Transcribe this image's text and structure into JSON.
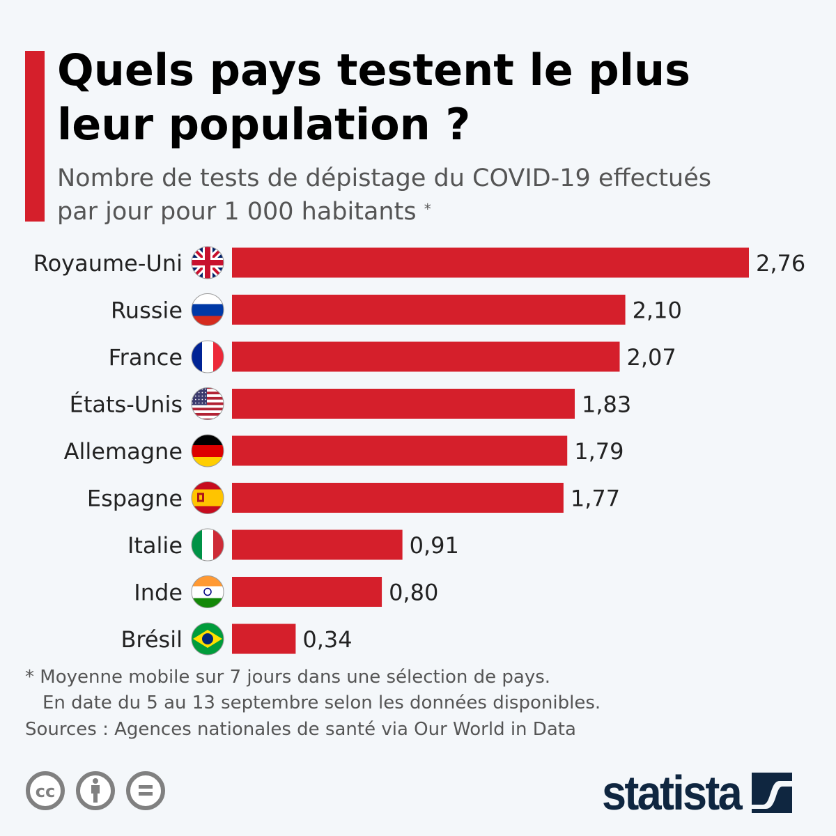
{
  "header": {
    "title_line1": "Quels pays testent le plus",
    "title_line2": "leur population ?",
    "subtitle_line1": "Nombre de tests de dépistage du COVID-19 effectués",
    "subtitle_line2": "par jour pour 1 000 habitants",
    "subtitle_marker": "*"
  },
  "chart_data": {
    "type": "bar",
    "orientation": "horizontal",
    "categories": [
      "Royaume-Uni",
      "Russie",
      "France",
      "États-Unis",
      "Allemagne",
      "Espagne",
      "Italie",
      "Inde",
      "Brésil"
    ],
    "values": [
      2.76,
      2.1,
      2.07,
      1.83,
      1.79,
      1.77,
      0.91,
      0.8,
      0.34
    ],
    "value_labels": [
      "2,76",
      "2,10",
      "2,07",
      "1,83",
      "1,79",
      "1,77",
      "0,91",
      "0,80",
      "0,34"
    ],
    "flags": [
      "flag-uk-icon",
      "flag-russia-icon",
      "flag-france-icon",
      "flag-usa-icon",
      "flag-germany-icon",
      "flag-spain-icon",
      "flag-italy-icon",
      "flag-india-icon",
      "flag-brazil-icon"
    ],
    "bar_color": "#d51f2b",
    "xlim": [
      0,
      2.76
    ],
    "grid": false
  },
  "footer": {
    "note_line1": "* Moyenne mobile sur 7 jours dans une sélection de pays.",
    "note_line2": "En date du 5 au 13 septembre selon les données disponibles.",
    "sources": "Sources : Agences nationales de santé via Our World in Data",
    "license_icons": [
      "cc-icon",
      "attribution-icon",
      "no-derivatives-icon"
    ],
    "logo": "statista"
  },
  "colors": {
    "accent": "#d51f2b",
    "logo": "#0f2640",
    "text_secondary": "#555555",
    "background": "#f4f7fa"
  }
}
